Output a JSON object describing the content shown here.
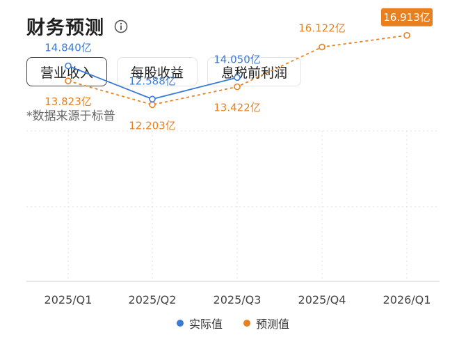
{
  "header": {
    "title": "财务预测",
    "info_icon": "info-circle-icon"
  },
  "tabs": [
    {
      "label": "营业收入",
      "active": true
    },
    {
      "label": "每股收益",
      "active": false
    },
    {
      "label": "息税前利润",
      "active": false
    }
  ],
  "source_note": "*数据来源于标普",
  "colors": {
    "actual": "#3a7bd5",
    "forecast": "#e8801f",
    "grid": "#e2e2e2",
    "axis": "#cccccc"
  },
  "chart_data": {
    "type": "line",
    "categories": [
      "2025/Q1",
      "2025/Q2",
      "2025/Q3",
      "2025/Q4",
      "2026/Q1"
    ],
    "series": [
      {
        "name": "实际值",
        "style": "solid",
        "values": [
          14.84,
          12.588,
          14.05,
          null,
          null
        ],
        "labels": [
          "14.840亿",
          "12.588亿",
          "14.050亿",
          null,
          null
        ]
      },
      {
        "name": "预测值",
        "style": "dashed",
        "values": [
          13.823,
          12.203,
          13.422,
          16.122,
          16.913
        ],
        "labels": [
          "13.823亿",
          "12.203亿",
          "13.422亿",
          "16.122亿",
          "16.913亿"
        ]
      }
    ],
    "highlight": {
      "series": 1,
      "index": 4
    },
    "grid": true,
    "legend_position": "bottom"
  }
}
